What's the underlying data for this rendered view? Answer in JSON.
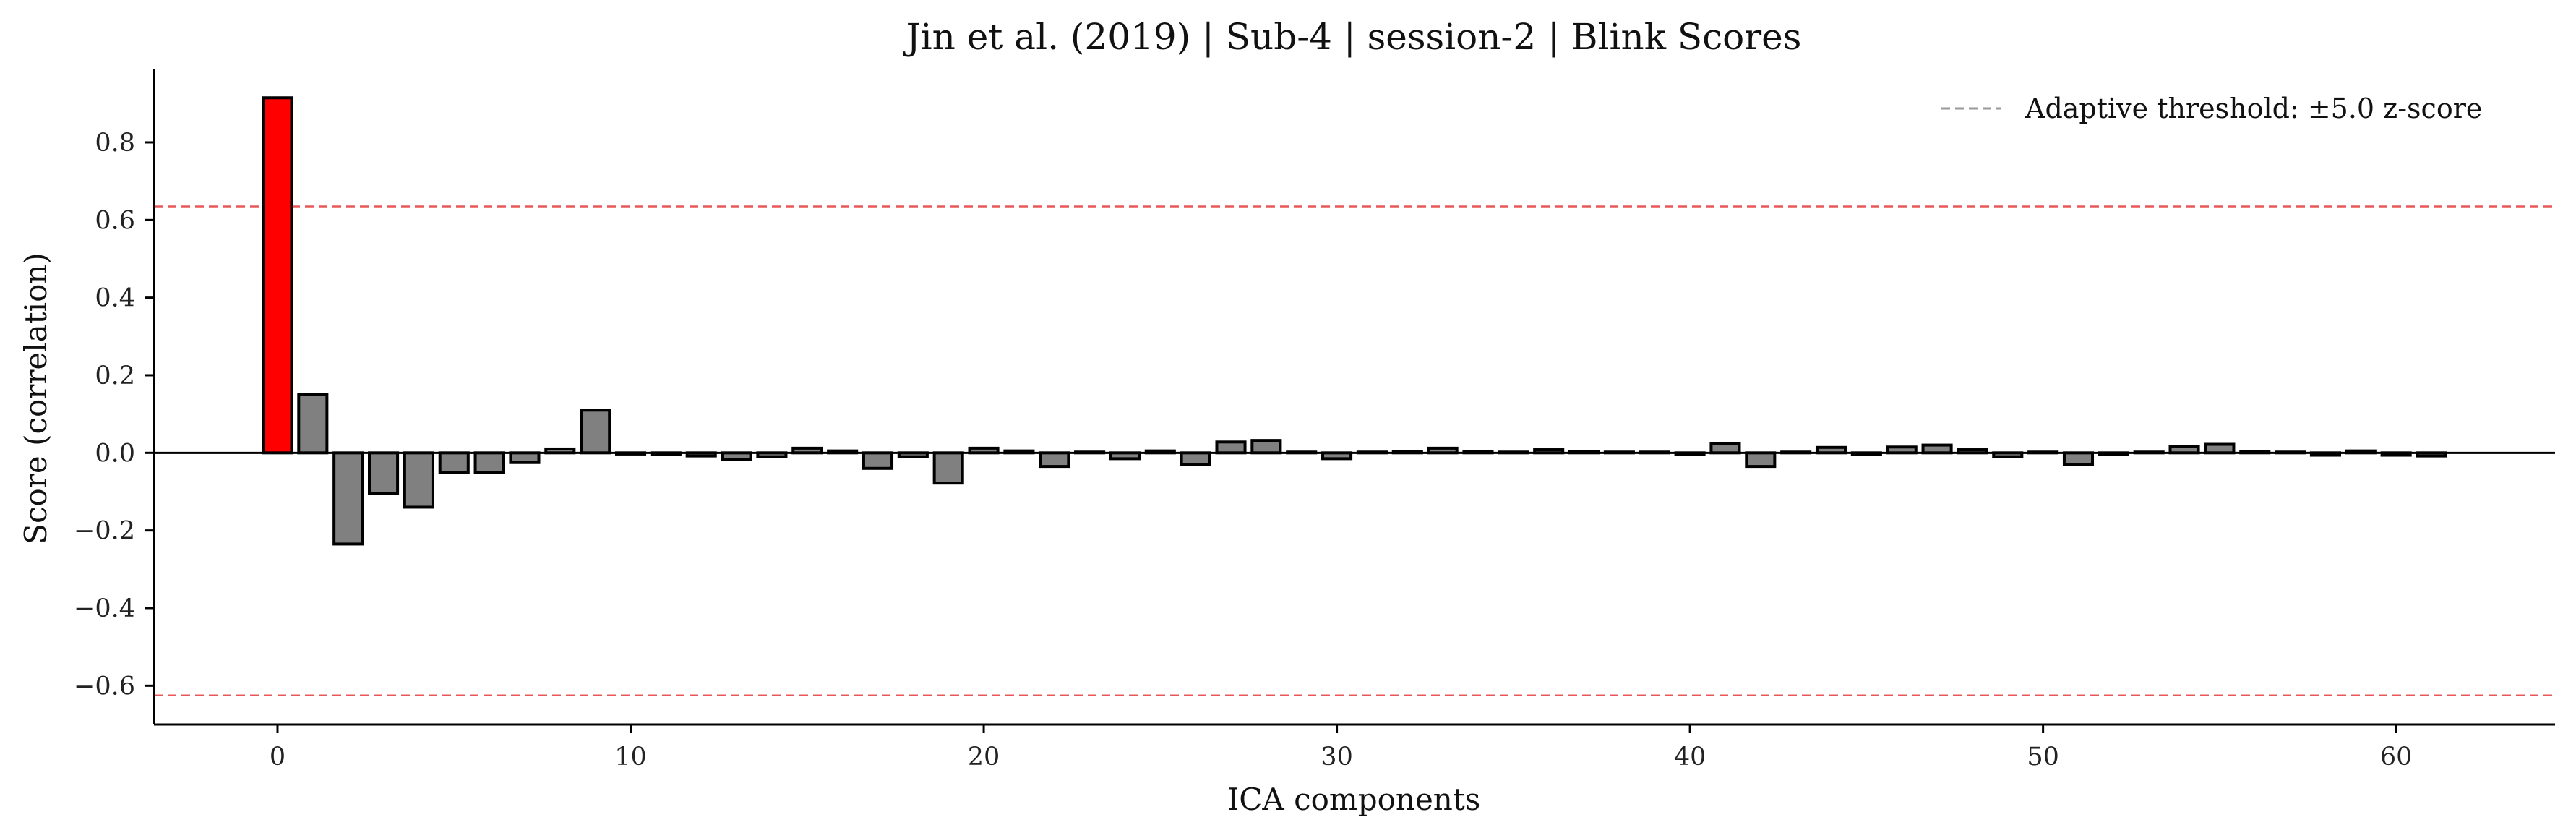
{
  "chart_data": {
    "type": "bar",
    "title": "Jin et al. (2019) | Sub-4 | session-2 | Blink Scores",
    "xlabel": "ICA components",
    "ylabel": "Score (correlation)",
    "xlim": [
      -3.5,
      64.5
    ],
    "ylim": [
      -0.7,
      0.99
    ],
    "xticks": [
      0,
      10,
      20,
      30,
      40,
      50,
      60
    ],
    "xtick_labels": [
      "0",
      "10",
      "20",
      "30",
      "40",
      "50",
      "60"
    ],
    "yticks": [
      -0.6,
      -0.4,
      -0.2,
      0.0,
      0.2,
      0.4,
      0.6,
      0.8
    ],
    "ytick_labels": [
      "−0.6",
      "−0.4",
      "−0.2",
      "0.0",
      "0.2",
      "0.4",
      "0.6",
      "0.8"
    ],
    "thresholds": [
      0.635,
      -0.625
    ],
    "legend": {
      "label": "Adaptive threshold: ±5.0 z-score",
      "position": "top-right"
    },
    "colors": {
      "flagged": "#ff0000",
      "normal": "#808080",
      "edge": "#000000",
      "threshold": "#e8585a",
      "zero_line": "#000000"
    },
    "flagged_indices": [
      0
    ],
    "components": [
      0,
      1,
      2,
      3,
      4,
      5,
      6,
      7,
      8,
      9,
      10,
      11,
      12,
      13,
      14,
      15,
      16,
      17,
      18,
      19,
      20,
      21,
      22,
      23,
      24,
      25,
      26,
      27,
      28,
      29,
      30,
      31,
      32,
      33,
      34,
      35,
      36,
      37,
      38,
      39,
      40,
      41,
      42,
      43,
      44,
      45,
      46,
      47,
      48,
      49,
      50,
      51,
      52,
      53,
      54,
      55,
      56,
      57,
      58,
      59,
      60,
      61
    ],
    "values": [
      0.915,
      0.15,
      -0.235,
      -0.105,
      -0.14,
      -0.05,
      -0.05,
      -0.025,
      0.01,
      0.11,
      -0.003,
      -0.005,
      -0.008,
      -0.018,
      -0.01,
      0.012,
      0.005,
      -0.04,
      -0.01,
      -0.078,
      0.012,
      0.005,
      -0.035,
      0.002,
      -0.015,
      0.005,
      -0.03,
      0.028,
      0.032,
      0.002,
      -0.015,
      0.002,
      0.004,
      0.012,
      0.003,
      0.002,
      0.008,
      0.004,
      0.002,
      0.002,
      -0.005,
      0.024,
      -0.035,
      0.002,
      0.014,
      -0.004,
      0.015,
      0.02,
      0.008,
      -0.01,
      0.002,
      -0.03,
      -0.005,
      0.002,
      0.016,
      0.022,
      0.003,
      0.002,
      -0.006,
      0.005,
      -0.006,
      -0.008
    ]
  }
}
